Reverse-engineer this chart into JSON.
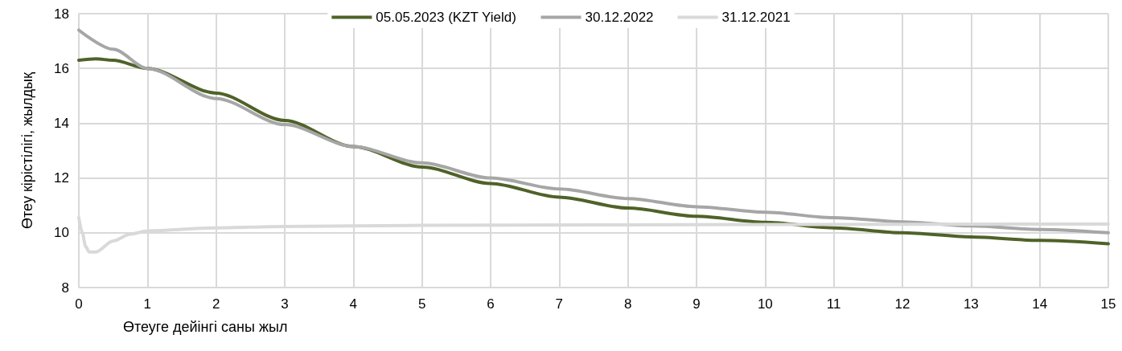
{
  "chart_data": {
    "type": "line",
    "xlabel": "Өтеуге дейінгі саны жыл",
    "ylabel": "Өтеу кірістілігі, жылдық",
    "xlim": [
      0,
      15
    ],
    "xticks": [
      0,
      1,
      2,
      3,
      4,
      5,
      6,
      7,
      8,
      9,
      10,
      11,
      12,
      13,
      14,
      15
    ],
    "ylim": [
      8,
      18
    ],
    "yticks": [
      8,
      10,
      12,
      14,
      16,
      18
    ],
    "grid": true,
    "legend": "top",
    "marker": "none",
    "line_style": "solid",
    "series": [
      {
        "name": "05.05.2023 (KZT Yield)",
        "color": "#4f6228",
        "x": [
          0,
          0.25,
          0.5,
          1,
          2,
          3,
          4,
          5,
          6,
          7,
          8,
          9,
          10,
          11,
          12,
          13,
          14,
          15
        ],
        "values": [
          16.3,
          16.35,
          16.3,
          16.0,
          15.1,
          14.1,
          13.15,
          12.4,
          11.8,
          11.3,
          10.9,
          10.6,
          10.38,
          10.18,
          10.0,
          9.85,
          9.72,
          9.6
        ]
      },
      {
        "name": "30.12.2022",
        "color": "#a6a6a6",
        "x": [
          0,
          0.5,
          1,
          2,
          3,
          4,
          5,
          6,
          7,
          8,
          9,
          10,
          11,
          12,
          13,
          14,
          15
        ],
        "values": [
          17.4,
          16.7,
          16.0,
          14.9,
          13.95,
          13.15,
          12.55,
          12.0,
          11.6,
          11.25,
          10.95,
          10.75,
          10.55,
          10.4,
          10.25,
          10.12,
          10.0
        ]
      },
      {
        "name": "31.12.2021",
        "color": "#d9d9d9",
        "x": [
          0,
          0.05,
          0.1,
          0.15,
          0.25,
          0.5,
          0.75,
          1,
          2,
          3,
          5,
          10,
          15
        ],
        "values": [
          10.55,
          10.0,
          9.5,
          9.3,
          9.3,
          9.7,
          9.95,
          10.07,
          10.18,
          10.23,
          10.27,
          10.3,
          10.32
        ]
      }
    ]
  }
}
